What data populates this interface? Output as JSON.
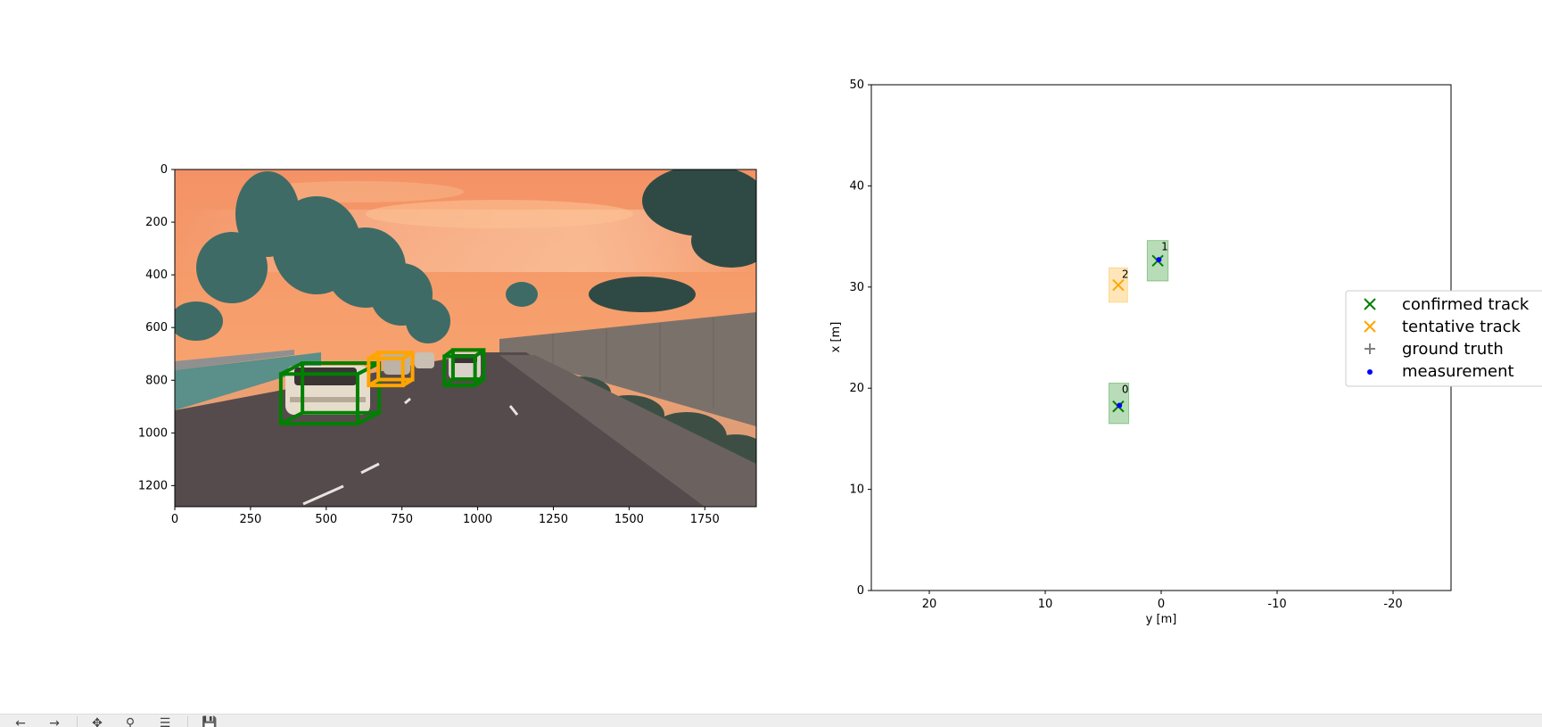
{
  "chart_data": [
    {
      "type": "image",
      "xlim": [
        0,
        1920
      ],
      "ylim": [
        1280,
        0
      ],
      "x_ticks": [
        "0",
        "250",
        "500",
        "750",
        "1000",
        "1250",
        "1500",
        "1750"
      ],
      "x_tick_values": [
        0,
        250,
        500,
        750,
        1000,
        1250,
        1500,
        1750
      ],
      "y_ticks": [
        "0",
        "200",
        "400",
        "600",
        "800",
        "1000",
        "1200"
      ],
      "y_tick_values": [
        0,
        200,
        400,
        600,
        800,
        1000,
        1200
      ],
      "boxes": [
        {
          "status": "confirmed",
          "color": "#008000",
          "x_range": [
            350,
            675
          ],
          "y_range": [
            735,
            965
          ]
        },
        {
          "status": "tentative",
          "color": "#FFA500",
          "x_range": [
            640,
            785
          ],
          "y_range": [
            695,
            820
          ]
        },
        {
          "status": "confirmed",
          "color": "#008000",
          "x_range": [
            890,
            1020
          ],
          "y_range": [
            685,
            820
          ]
        }
      ]
    },
    {
      "type": "scatter",
      "xlabel": "y [m]",
      "ylabel": "x [m]",
      "xlim": [
        25,
        -25
      ],
      "ylim": [
        0,
        50
      ],
      "x_ticks": [
        "20",
        "10",
        "0",
        "-10",
        "-20"
      ],
      "x_tick_values": [
        20,
        10,
        0,
        -10,
        -20
      ],
      "y_ticks": [
        "0",
        "10",
        "20",
        "30",
        "40",
        "50"
      ],
      "y_tick_values": [
        0,
        10,
        20,
        30,
        40,
        50
      ],
      "tracks": [
        {
          "id": "0",
          "status": "confirmed",
          "y": 3.7,
          "x": 18.2,
          "box_y": [
            2.8,
            4.5
          ],
          "box_x": [
            16.5,
            20.5
          ]
        },
        {
          "id": "1",
          "status": "confirmed",
          "y": 0.3,
          "x": 32.6,
          "box_y": [
            -0.6,
            1.2
          ],
          "box_x": [
            30.6,
            34.6
          ]
        },
        {
          "id": "2",
          "status": "tentative",
          "y": 3.7,
          "x": 30.2,
          "box_y": [
            2.9,
            4.5
          ],
          "box_x": [
            28.5,
            31.9
          ]
        }
      ],
      "measurements": [
        {
          "y": 3.6,
          "x": 18.3
        },
        {
          "y": 0.2,
          "x": 32.7
        }
      ],
      "legend_position": "right",
      "legend": [
        {
          "label": "confirmed track",
          "marker": "x",
          "color": "#008000"
        },
        {
          "label": "tentative track",
          "marker": "x",
          "color": "#FFA500"
        },
        {
          "label": "ground truth",
          "marker": "+",
          "color": "#808080"
        },
        {
          "label": "measurement",
          "marker": ".",
          "color": "#0000FF"
        }
      ]
    }
  ],
  "colors": {
    "confirmed": "#008000",
    "tentative": "#FFA500",
    "ground_truth": "#808080",
    "measurement": "#0000FF",
    "toolbar_bg": "#eeeeee"
  },
  "toolbar": {
    "icons": [
      "back-arrow-icon",
      "forward-arrow-icon",
      "pan-icon",
      "zoom-icon",
      "configure-subplots-icon",
      "save-icon"
    ]
  }
}
